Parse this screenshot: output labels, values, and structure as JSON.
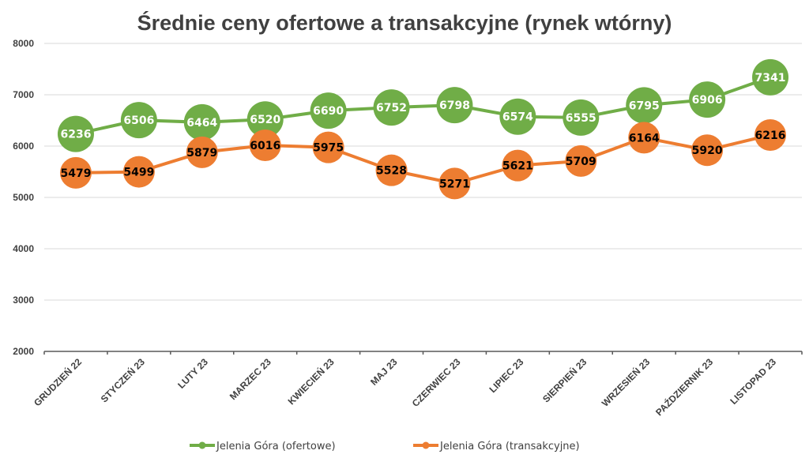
{
  "chart_data": {
    "type": "line",
    "title": "Średnie ceny ofertowe a transakcyjne (rynek wtórny)",
    "xlabel": "",
    "ylabel": "",
    "ylim": [
      2000,
      8000
    ],
    "yticks": [
      2000,
      3000,
      4000,
      5000,
      6000,
      7000,
      8000
    ],
    "grid": true,
    "legend_position": "bottom",
    "categories": [
      "GRUDZIEŃ 22",
      "STYCZEŃ 23",
      "LUTY 23",
      "MARZEC 23",
      "KWIECIEŃ 23",
      "MAJ 23",
      "CZERWIEC 23",
      "LIPIEC 23",
      "SIERPIEŃ 23",
      "WRZESIEŃ 23",
      "PAŹDZIERNIK 23",
      "LISTOPAD 23"
    ],
    "series": [
      {
        "name": "Jelenia Góra (ofertowe)",
        "color": "#70AD47",
        "label_color": "#FFFFFF",
        "values": [
          6236,
          6506,
          6464,
          6520,
          6690,
          6752,
          6798,
          6574,
          6555,
          6795,
          6906,
          7341
        ]
      },
      {
        "name": "Jelenia Góra (transakcyjne)",
        "color": "#ED7D31",
        "label_color": "#000000",
        "values": [
          5479,
          5499,
          5879,
          6016,
          5975,
          5528,
          5271,
          5621,
          5709,
          6164,
          5920,
          6216
        ]
      }
    ]
  }
}
